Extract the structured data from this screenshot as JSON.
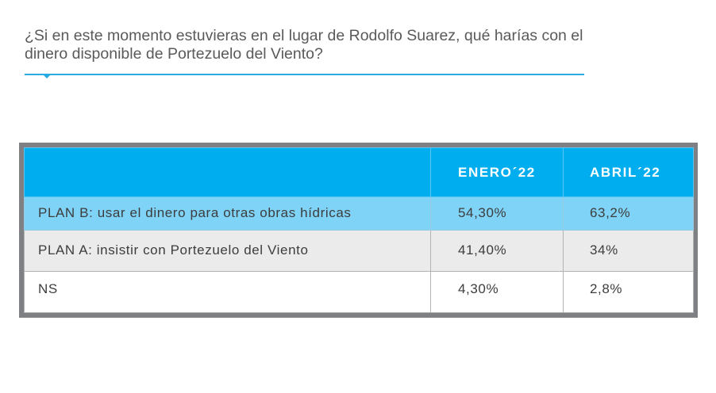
{
  "question": "¿Si en este momento estuvieras en el lugar de Rodolfo Suarez, qué harías con el dinero disponible de Portezuelo del Viento?",
  "colors": {
    "accent": "#00aeef",
    "highlight_row": "#7fd3f7",
    "alt_row": "#ebebeb",
    "frame": "#7f8083"
  },
  "chart_data": {
    "type": "table",
    "columns": [
      "",
      "ENERO´22",
      "ABRIL´22"
    ],
    "rows": [
      {
        "label": "PLAN B: usar el dinero para otras obras hídricas",
        "values": [
          "54,30%",
          "63,2%"
        ]
      },
      {
        "label": "PLAN A: insistir con Portezuelo del Viento",
        "values": [
          "41,40%",
          "34%"
        ]
      },
      {
        "label": "NS",
        "values": [
          "4,30%",
          "2,8%"
        ]
      }
    ]
  }
}
